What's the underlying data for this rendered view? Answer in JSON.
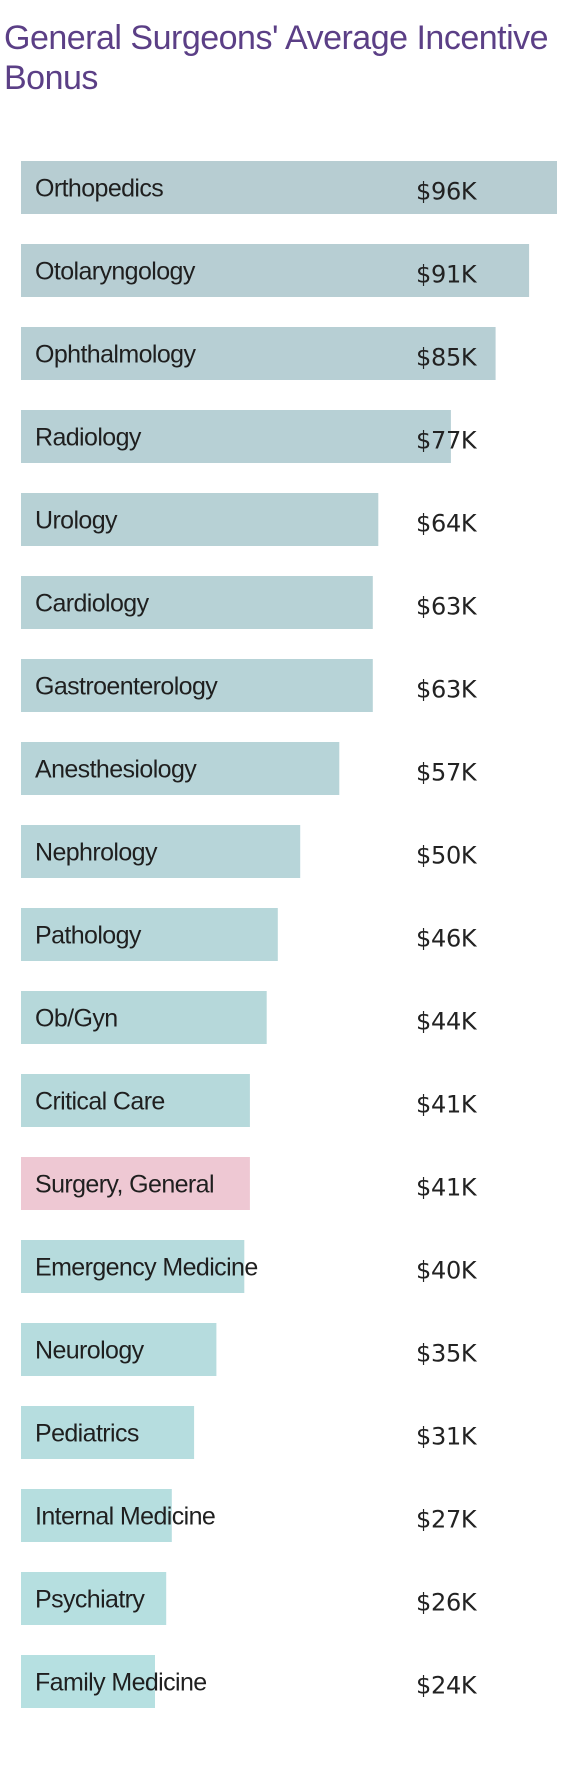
{
  "colors": {
    "title": "#5b3f86",
    "highlight_bar": "#eec8d3",
    "highlight_value": "#c9355e",
    "label": "#1f1f1f",
    "value": "#222222",
    "bar_gradient_top": "#b7cdd2",
    "bar_gradient_bottom": "#b6e0e1"
  },
  "chart_data": {
    "type": "bar",
    "orientation": "horizontal",
    "title": "General Surgeons' Average Incentive Bonus",
    "xlim": [
      0,
      96
    ],
    "unit": "$K",
    "grid": false,
    "categories": [
      "Orthopedics",
      "Otolaryngology",
      "Ophthalmology",
      "Radiology",
      "Urology",
      "Cardiology",
      "Gastroenterology",
      "Anesthesiology",
      "Nephrology",
      "Pathology",
      "Ob/Gyn",
      "Critical Care",
      "Surgery, General",
      "Emergency Medicine",
      "Neurology",
      "Pediatrics",
      "Internal Medicine",
      "Psychiatry",
      "Family Medicine"
    ],
    "values": [
      96,
      91,
      85,
      77,
      64,
      63,
      63,
      57,
      50,
      46,
      44,
      41,
      41,
      40,
      35,
      31,
      27,
      26,
      24
    ],
    "value_labels": [
      "$96K",
      "$91K",
      "$85K",
      "$77K",
      "$64K",
      "$63K",
      "$63K",
      "$57K",
      "$50K",
      "$46K",
      "$44K",
      "$41K",
      "$41K",
      "$40K",
      "$35K",
      "$31K",
      "$27K",
      "$26K",
      "$24K"
    ],
    "highlight": "Surgery, General"
  }
}
